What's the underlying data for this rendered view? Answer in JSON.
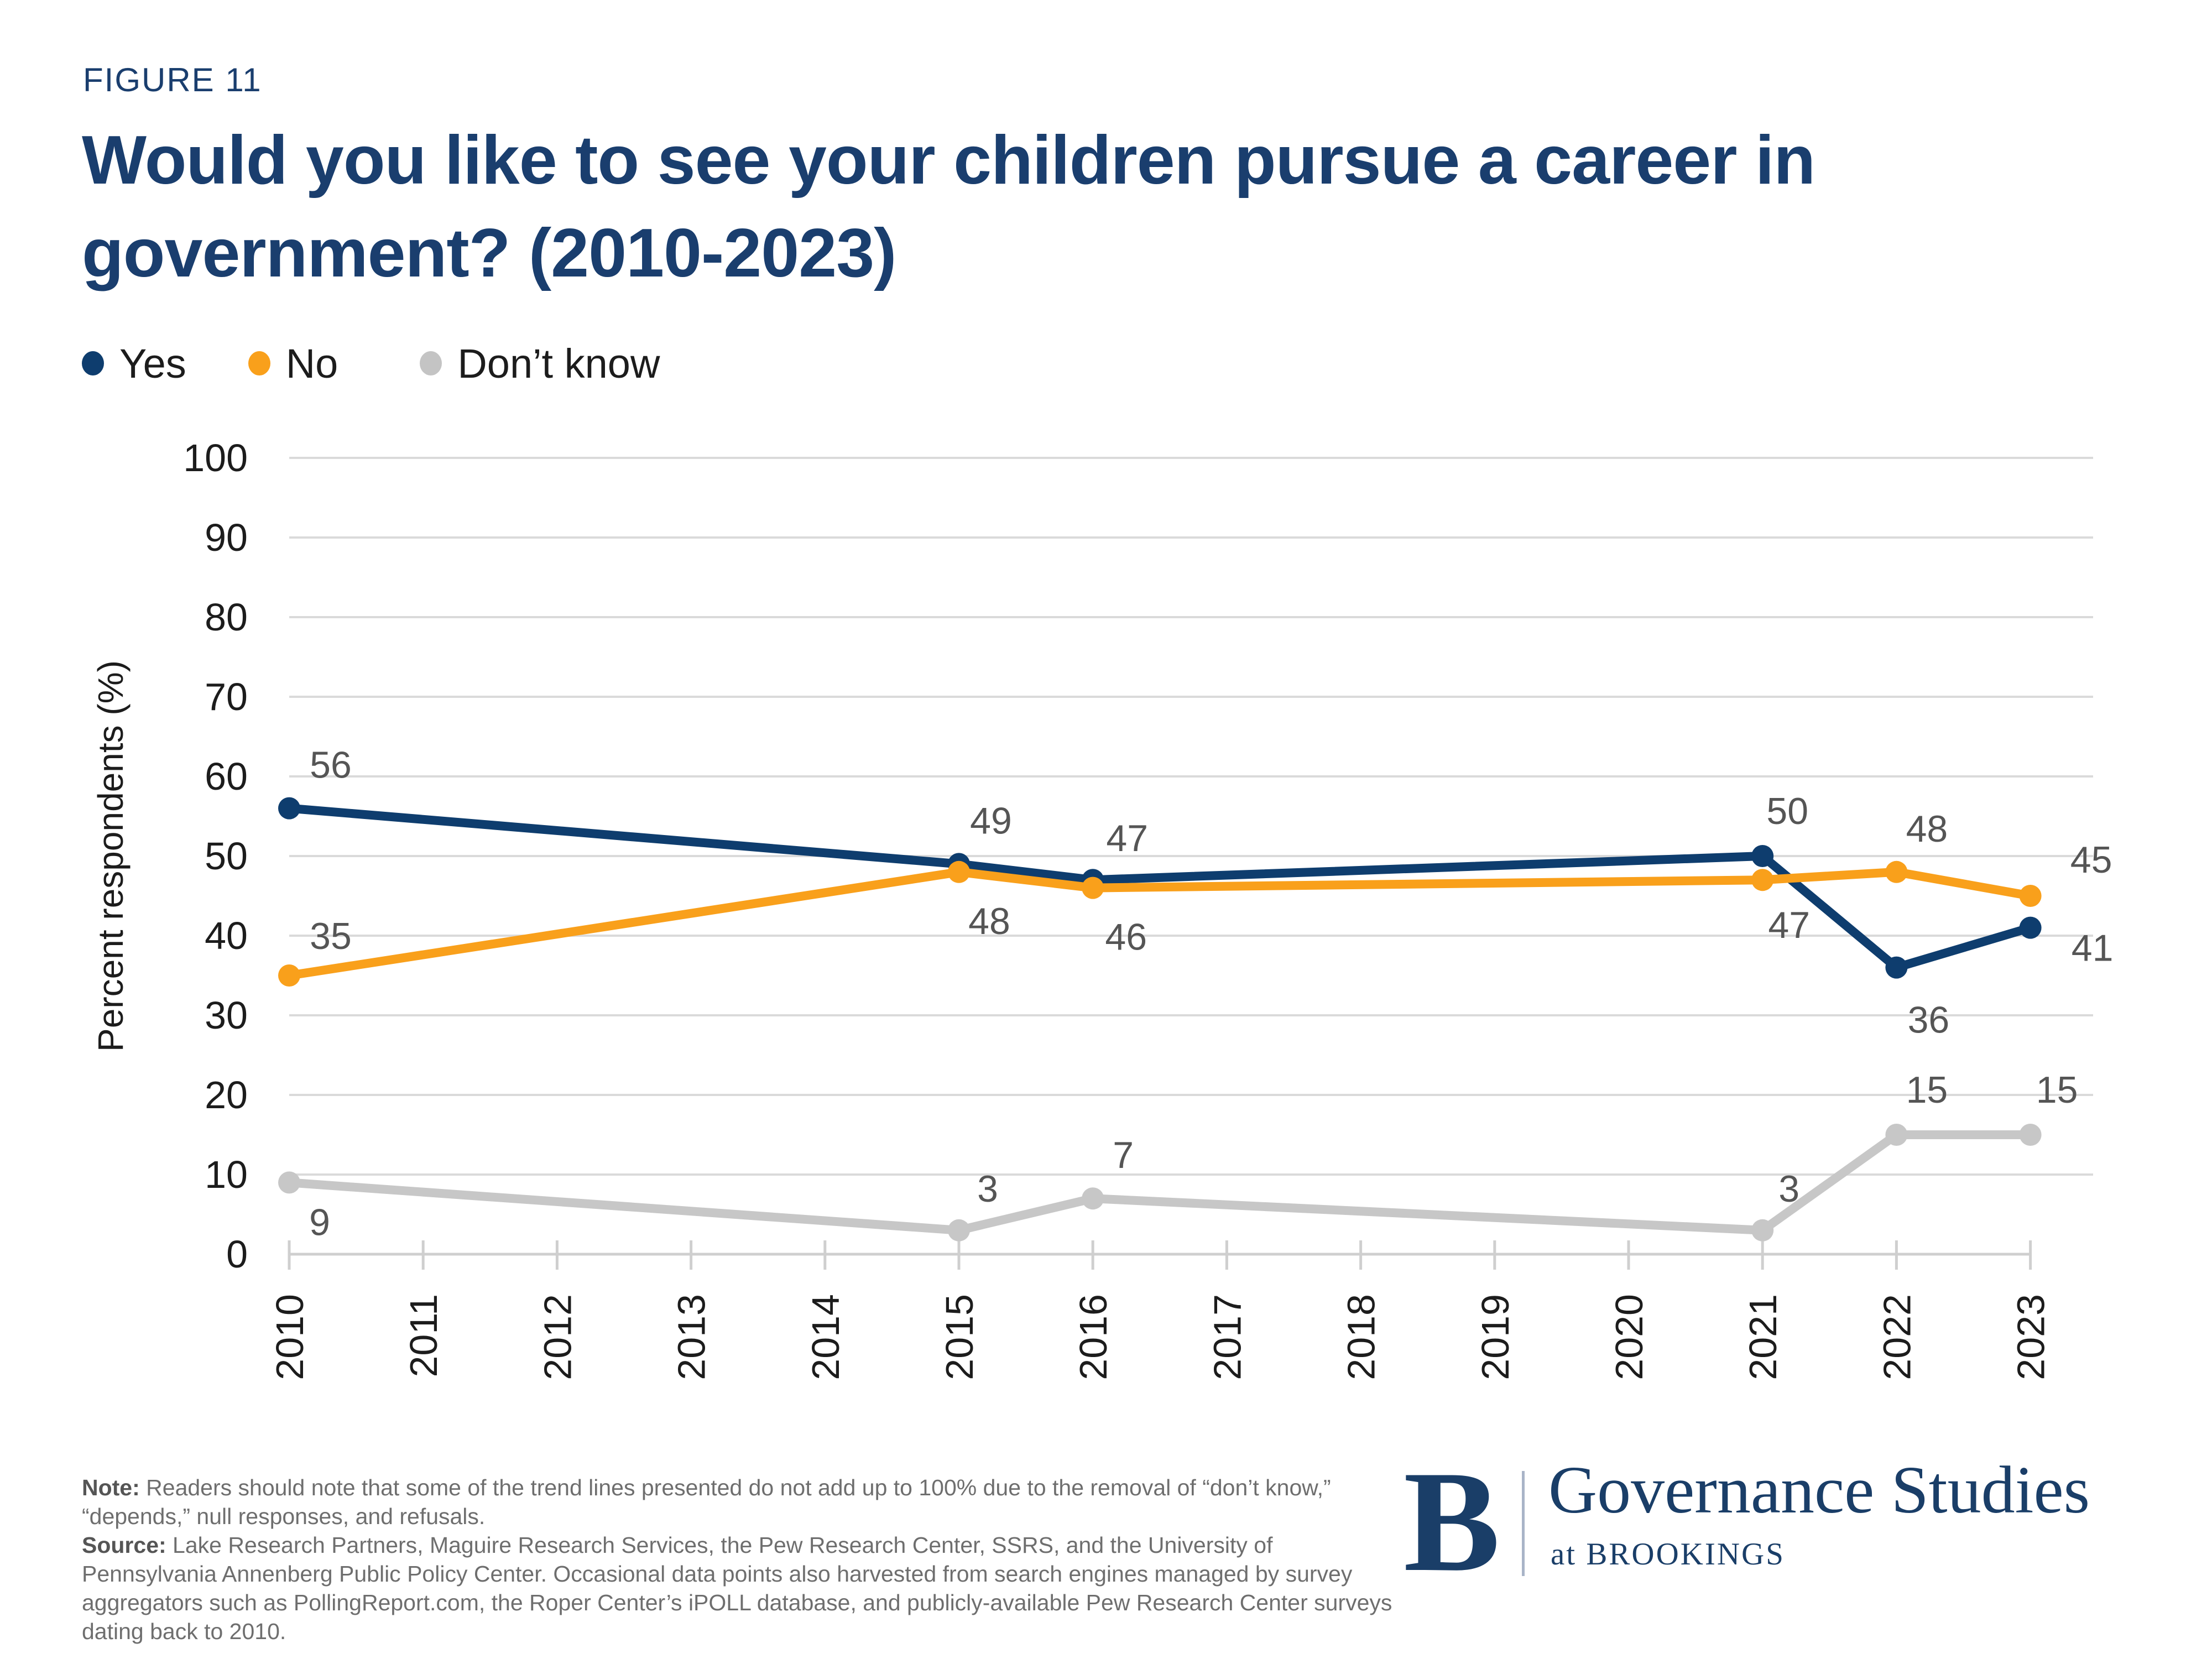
{
  "figure_label": "FIGURE 11",
  "title": "Would you like to see your children pursue a career in government? (2010-2023)",
  "legend": {
    "items": [
      {
        "label": "Yes",
        "color": "#0E3D6E"
      },
      {
        "label": "No",
        "color": "#F9A01B"
      },
      {
        "label": "Don’t know",
        "color": "#C4C4C4"
      }
    ]
  },
  "chart_data": {
    "type": "line",
    "title": "Would you like to see your children pursue a career in government? (2010-2023)",
    "x_categories": [
      "2010",
      "2011",
      "2012",
      "2013",
      "2014",
      "2015",
      "2016",
      "2017",
      "2018",
      "2019",
      "2020",
      "2021",
      "2022",
      "2023"
    ],
    "ylabel": "Percent respondents (%)",
    "ylim": [
      0,
      100
    ],
    "ytick_step": 10,
    "grid": "horizontal",
    "legend_position": "top-left",
    "series": [
      {
        "name": "Yes",
        "color": "#0E3D6E",
        "points": [
          {
            "x": "2010",
            "y": 56,
            "label_offset": [
              75,
              -55
            ]
          },
          {
            "x": "2015",
            "y": 49,
            "label_offset": [
              58,
              -55
            ]
          },
          {
            "x": "2016",
            "y": 47,
            "label_offset": [
              62,
              -52
            ]
          },
          {
            "x": "2021",
            "y": 50,
            "label_offset": [
              45,
              -58
            ]
          },
          {
            "x": "2022",
            "y": 36,
            "label_offset": [
              58,
              118
            ]
          },
          {
            "x": "2023",
            "y": 41,
            "label_offset": [
              112,
              60
            ]
          }
        ]
      },
      {
        "name": "No",
        "color": "#F9A01B",
        "points": [
          {
            "x": "2010",
            "y": 35,
            "label_offset": [
              75,
              -48
            ]
          },
          {
            "x": "2015",
            "y": 48,
            "label_offset": [
              55,
              112
            ]
          },
          {
            "x": "2016",
            "y": 46,
            "label_offset": [
              60,
              112
            ]
          },
          {
            "x": "2021",
            "y": 47,
            "label_offset": [
              48,
              105
            ]
          },
          {
            "x": "2022",
            "y": 48,
            "label_offset": [
              55,
              -55
            ]
          },
          {
            "x": "2023",
            "y": 45,
            "label_offset": [
              110,
              -42
            ]
          }
        ]
      },
      {
        "name": "Don’t know",
        "color": "#C7C7C7",
        "points": [
          {
            "x": "2010",
            "y": 9,
            "label_offset": [
              55,
              95
            ]
          },
          {
            "x": "2015",
            "y": 3,
            "label_offset": [
              52,
              -52
            ]
          },
          {
            "x": "2016",
            "y": 7,
            "label_offset": [
              55,
              -55
            ]
          },
          {
            "x": "2021",
            "y": 3,
            "label_offset": [
              48,
              -52
            ]
          },
          {
            "x": "2022",
            "y": 15,
            "label_offset": [
              55,
              -58
            ]
          },
          {
            "x": "2023",
            "y": 15,
            "label_offset": [
              48,
              -58
            ]
          }
        ]
      }
    ]
  },
  "notes": {
    "note_label": "Note:",
    "note_text": " Readers should note that some of the trend lines presented do not add up to 100% due to the removal of “don’t know,” “depends,” null responses, and refusals.",
    "source_label": "Source:",
    "source_text": " Lake Research Partners, Maguire Research Services, the Pew Research Center, SSRS, and the University of Pennsylvania Annenberg Public Policy Center. Occasional data points also harvested from search engines managed by survey aggregators such as PollingReport.com, the Roper Center’s iPOLL database, and publicly-available Pew Research Center surveys dating back to 2010."
  },
  "logo": {
    "mark": "B",
    "org": "Governance Studies",
    "sub": "at BROOKINGS"
  },
  "colors": {
    "title_navy": "#1A3E6E",
    "gridline": "#DADADA",
    "axis": "#CFCFCF",
    "tick_label": "#1c1c1c",
    "data_label": "#555555",
    "note_gray": "#6E6E6E",
    "logo_navy": "#1A3E68",
    "logo_divider": "#A9B4C7",
    "background": "#FFFFFF"
  }
}
